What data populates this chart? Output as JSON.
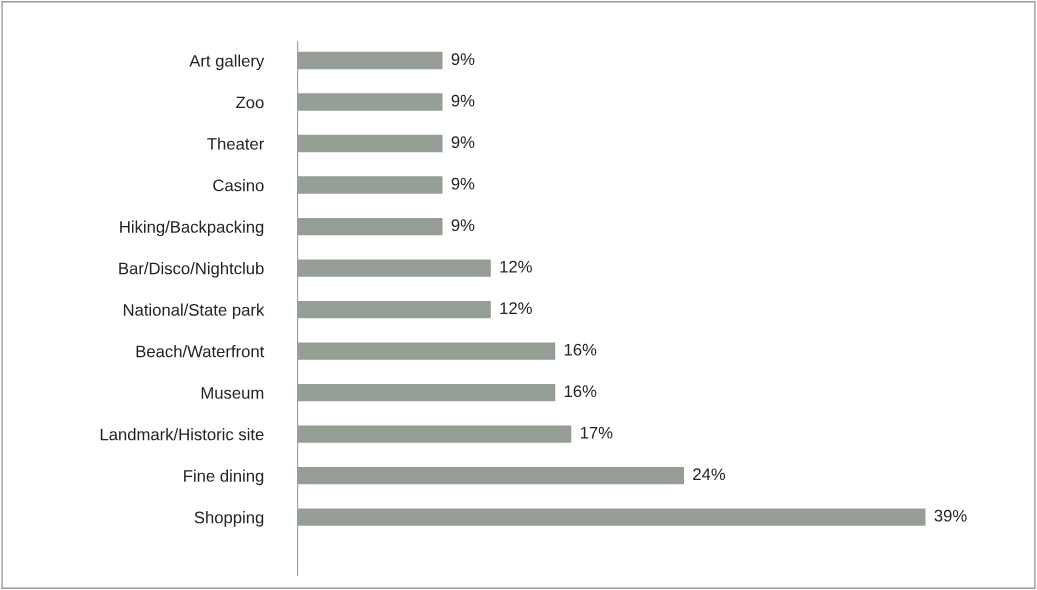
{
  "chart_data": {
    "type": "bar",
    "orientation": "horizontal",
    "categories": [
      "Art gallery",
      "Zoo",
      "Theater",
      "Casino",
      "Hiking/Backpacking",
      "Bar/Disco/Nightclub",
      "National/State park",
      "Beach/Waterfront",
      "Museum",
      "Landmark/Historic site",
      "Fine dining",
      "Shopping"
    ],
    "values": [
      9,
      9,
      9,
      9,
      9,
      12,
      12,
      16,
      16,
      17,
      24,
      39
    ],
    "value_labels": [
      "9%",
      "9%",
      "9%",
      "9%",
      "9%",
      "12%",
      "12%",
      "16%",
      "16%",
      "17%",
      "24%",
      "39%"
    ],
    "color": "#949e94",
    "grid": false,
    "legend": false,
    "tick_labels": "y"
  }
}
